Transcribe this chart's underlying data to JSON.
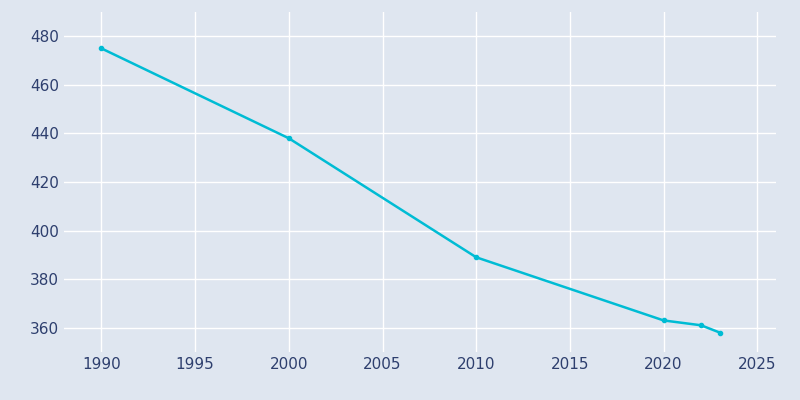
{
  "years": [
    1990,
    2000,
    2010,
    2020,
    2022,
    2023
  ],
  "population": [
    475,
    438,
    389,
    363,
    361,
    358
  ],
  "line_color": "#00bcd4",
  "marker": "o",
  "marker_size": 3,
  "line_width": 1.8,
  "background_color": "#dfe6f0",
  "plot_background_color": "#dfe6f0",
  "grid_color": "#ffffff",
  "xlim": [
    1988,
    2026
  ],
  "ylim": [
    350,
    490
  ],
  "xticks": [
    1990,
    1995,
    2000,
    2005,
    2010,
    2015,
    2020,
    2025
  ],
  "yticks": [
    360,
    380,
    400,
    420,
    440,
    460,
    480
  ],
  "tick_label_color": "#2e3f6e",
  "tick_fontsize": 11
}
